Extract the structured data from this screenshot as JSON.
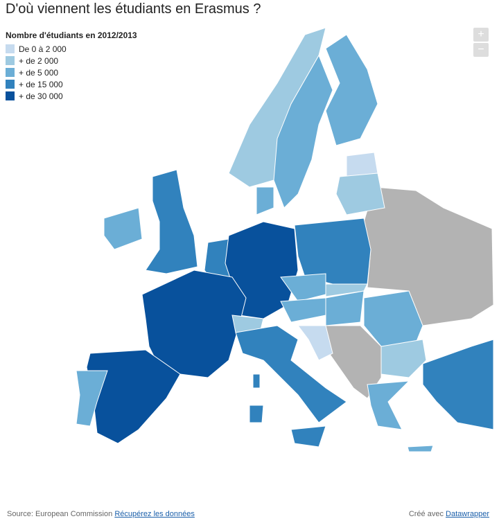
{
  "header": {
    "title": "D'où viennent les étudiants en Erasmus ?"
  },
  "legend": {
    "title": "Nombre d'étudiants en 2012/2013",
    "items": [
      {
        "label": "De 0 à 2 000",
        "color": "#c6dbef"
      },
      {
        "label": "+ de 2 000",
        "color": "#9ecae1"
      },
      {
        "label": "+ de 5 000",
        "color": "#6baed6"
      },
      {
        "label": "+ de 15 000",
        "color": "#3182bd"
      },
      {
        "label": "+ de 30 000",
        "color": "#08519c"
      }
    ]
  },
  "controls": {
    "zoom_in": "+",
    "zoom_out": "−"
  },
  "footer": {
    "source": "Source: European Commission",
    "data_link": "Récupérez les données",
    "credit": "Créé avec",
    "credit_link": "Datawrapper"
  }
}
